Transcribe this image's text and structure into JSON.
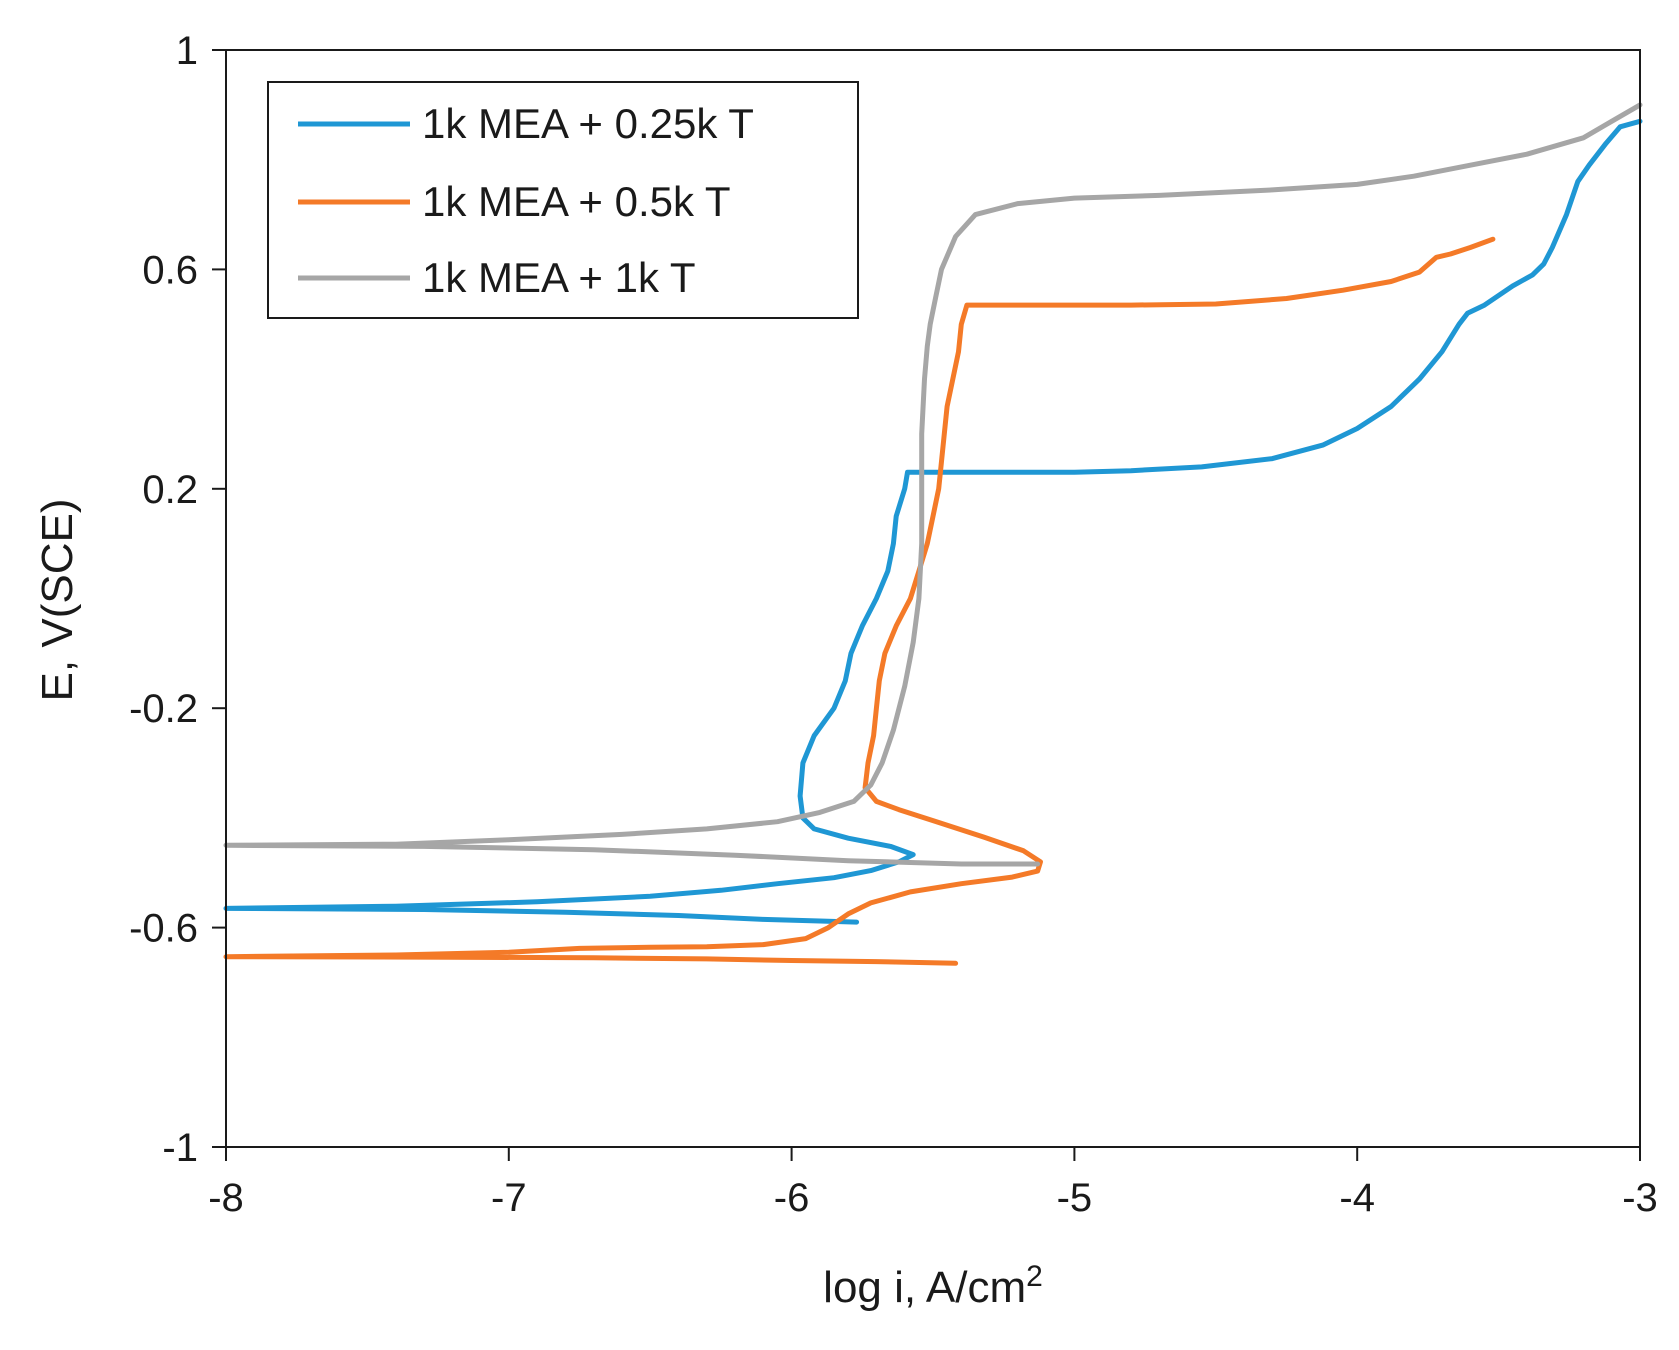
{
  "chart_data": {
    "type": "line",
    "title": "",
    "xlabel": "log i, A/cm",
    "xlabel_superscript": "2",
    "ylabel": "E, V(SCE)",
    "xlim": [
      -8,
      -3
    ],
    "ylim": [
      -1,
      1
    ],
    "x_ticks": [
      -8,
      -7,
      -6,
      -5,
      -4,
      -3
    ],
    "y_ticks": [
      -1,
      -0.6,
      -0.2,
      0.2,
      0.6,
      1
    ],
    "x_tick_labels": [
      "-8",
      "-7",
      "-6",
      "-5",
      "-4",
      "-3"
    ],
    "y_tick_labels": [
      "-1",
      "-0.6",
      "-0.2",
      "0.2",
      "0.6",
      "1"
    ],
    "grid": false,
    "legend_position": "top-left",
    "series": [
      {
        "name": "1k MEA + 0.25k T",
        "color": "#1f97d4",
        "points": [
          [
            -5.77,
            -0.59
          ],
          [
            -5.9,
            -0.588
          ],
          [
            -6.1,
            -0.585
          ],
          [
            -6.4,
            -0.578
          ],
          [
            -6.8,
            -0.572
          ],
          [
            -7.3,
            -0.567
          ],
          [
            -8.0,
            -0.565
          ],
          [
            -7.4,
            -0.561
          ],
          [
            -6.9,
            -0.553
          ],
          [
            -6.5,
            -0.543
          ],
          [
            -6.25,
            -0.532
          ],
          [
            -6.05,
            -0.52
          ],
          [
            -5.85,
            -0.509
          ],
          [
            -5.72,
            -0.496
          ],
          [
            -5.62,
            -0.48
          ],
          [
            -5.57,
            -0.467
          ],
          [
            -5.65,
            -0.452
          ],
          [
            -5.8,
            -0.437
          ],
          [
            -5.92,
            -0.42
          ],
          [
            -5.96,
            -0.4
          ],
          [
            -5.97,
            -0.36
          ],
          [
            -5.96,
            -0.3
          ],
          [
            -5.92,
            -0.25
          ],
          [
            -5.85,
            -0.2
          ],
          [
            -5.81,
            -0.15
          ],
          [
            -5.79,
            -0.1
          ],
          [
            -5.75,
            -0.05
          ],
          [
            -5.7,
            0.0
          ],
          [
            -5.66,
            0.05
          ],
          [
            -5.64,
            0.1
          ],
          [
            -5.63,
            0.15
          ],
          [
            -5.6,
            0.2
          ],
          [
            -5.59,
            0.23
          ],
          [
            -5.56,
            0.23
          ],
          [
            -5.4,
            0.23
          ],
          [
            -5.2,
            0.23
          ],
          [
            -5.0,
            0.23
          ],
          [
            -4.8,
            0.233
          ],
          [
            -4.55,
            0.24
          ],
          [
            -4.3,
            0.255
          ],
          [
            -4.12,
            0.28
          ],
          [
            -4.0,
            0.31
          ],
          [
            -3.88,
            0.35
          ],
          [
            -3.78,
            0.4
          ],
          [
            -3.7,
            0.45
          ],
          [
            -3.64,
            0.5
          ],
          [
            -3.61,
            0.52
          ],
          [
            -3.55,
            0.535
          ],
          [
            -3.45,
            0.57
          ],
          [
            -3.38,
            0.59
          ],
          [
            -3.34,
            0.61
          ],
          [
            -3.31,
            0.64
          ],
          [
            -3.26,
            0.7
          ],
          [
            -3.22,
            0.76
          ],
          [
            -3.18,
            0.79
          ],
          [
            -3.12,
            0.83
          ],
          [
            -3.07,
            0.86
          ],
          [
            -3.0,
            0.87
          ]
        ]
      },
      {
        "name": "1k MEA + 0.5k T",
        "color": "#f47a28",
        "points": [
          [
            -5.42,
            -0.665
          ],
          [
            -5.7,
            -0.662
          ],
          [
            -6.0,
            -0.66
          ],
          [
            -6.3,
            -0.657
          ],
          [
            -6.7,
            -0.655
          ],
          [
            -7.2,
            -0.654
          ],
          [
            -8.0,
            -0.653
          ],
          [
            -7.4,
            -0.65
          ],
          [
            -7.0,
            -0.645
          ],
          [
            -6.75,
            -0.638
          ],
          [
            -6.5,
            -0.636
          ],
          [
            -6.3,
            -0.635
          ],
          [
            -6.1,
            -0.631
          ],
          [
            -5.95,
            -0.62
          ],
          [
            -5.87,
            -0.6
          ],
          [
            -5.8,
            -0.575
          ],
          [
            -5.72,
            -0.555
          ],
          [
            -5.58,
            -0.535
          ],
          [
            -5.4,
            -0.52
          ],
          [
            -5.22,
            -0.508
          ],
          [
            -5.13,
            -0.497
          ],
          [
            -5.12,
            -0.48
          ],
          [
            -5.18,
            -0.46
          ],
          [
            -5.32,
            -0.435
          ],
          [
            -5.5,
            -0.405
          ],
          [
            -5.62,
            -0.385
          ],
          [
            -5.7,
            -0.37
          ],
          [
            -5.74,
            -0.345
          ],
          [
            -5.73,
            -0.3
          ],
          [
            -5.71,
            -0.25
          ],
          [
            -5.7,
            -0.2
          ],
          [
            -5.69,
            -0.15
          ],
          [
            -5.67,
            -0.1
          ],
          [
            -5.63,
            -0.05
          ],
          [
            -5.58,
            0.0
          ],
          [
            -5.55,
            0.05
          ],
          [
            -5.52,
            0.1
          ],
          [
            -5.5,
            0.15
          ],
          [
            -5.48,
            0.2
          ],
          [
            -5.47,
            0.25
          ],
          [
            -5.46,
            0.3
          ],
          [
            -5.45,
            0.35
          ],
          [
            -5.43,
            0.4
          ],
          [
            -5.41,
            0.45
          ],
          [
            -5.4,
            0.5
          ],
          [
            -5.38,
            0.535
          ],
          [
            -5.1,
            0.535
          ],
          [
            -4.8,
            0.535
          ],
          [
            -4.5,
            0.537
          ],
          [
            -4.25,
            0.547
          ],
          [
            -4.05,
            0.562
          ],
          [
            -3.88,
            0.578
          ],
          [
            -3.78,
            0.595
          ],
          [
            -3.72,
            0.622
          ],
          [
            -3.67,
            0.628
          ],
          [
            -3.6,
            0.64
          ],
          [
            -3.52,
            0.655
          ]
        ]
      },
      {
        "name": "1k MEA + 1k T",
        "color": "#a6a6a6",
        "points": [
          [
            -5.13,
            -0.484
          ],
          [
            -5.4,
            -0.484
          ],
          [
            -5.8,
            -0.478
          ],
          [
            -6.2,
            -0.468
          ],
          [
            -6.7,
            -0.458
          ],
          [
            -7.3,
            -0.452
          ],
          [
            -8.0,
            -0.45
          ],
          [
            -7.4,
            -0.448
          ],
          [
            -7.0,
            -0.44
          ],
          [
            -6.6,
            -0.43
          ],
          [
            -6.3,
            -0.42
          ],
          [
            -6.05,
            -0.407
          ],
          [
            -5.9,
            -0.39
          ],
          [
            -5.78,
            -0.37
          ],
          [
            -5.72,
            -0.34
          ],
          [
            -5.68,
            -0.3
          ],
          [
            -5.64,
            -0.24
          ],
          [
            -5.6,
            -0.16
          ],
          [
            -5.57,
            -0.08
          ],
          [
            -5.55,
            0.0
          ],
          [
            -5.54,
            0.1
          ],
          [
            -5.54,
            0.2
          ],
          [
            -5.54,
            0.3
          ],
          [
            -5.53,
            0.4
          ],
          [
            -5.52,
            0.46
          ],
          [
            -5.51,
            0.5
          ],
          [
            -5.49,
            0.55
          ],
          [
            -5.47,
            0.6
          ],
          [
            -5.42,
            0.66
          ],
          [
            -5.35,
            0.7
          ],
          [
            -5.2,
            0.72
          ],
          [
            -5.0,
            0.73
          ],
          [
            -4.7,
            0.735
          ],
          [
            -4.3,
            0.745
          ],
          [
            -4.0,
            0.755
          ],
          [
            -3.8,
            0.77
          ],
          [
            -3.6,
            0.79
          ],
          [
            -3.4,
            0.81
          ],
          [
            -3.2,
            0.84
          ],
          [
            -3.1,
            0.87
          ],
          [
            -3.0,
            0.9
          ]
        ]
      }
    ]
  }
}
